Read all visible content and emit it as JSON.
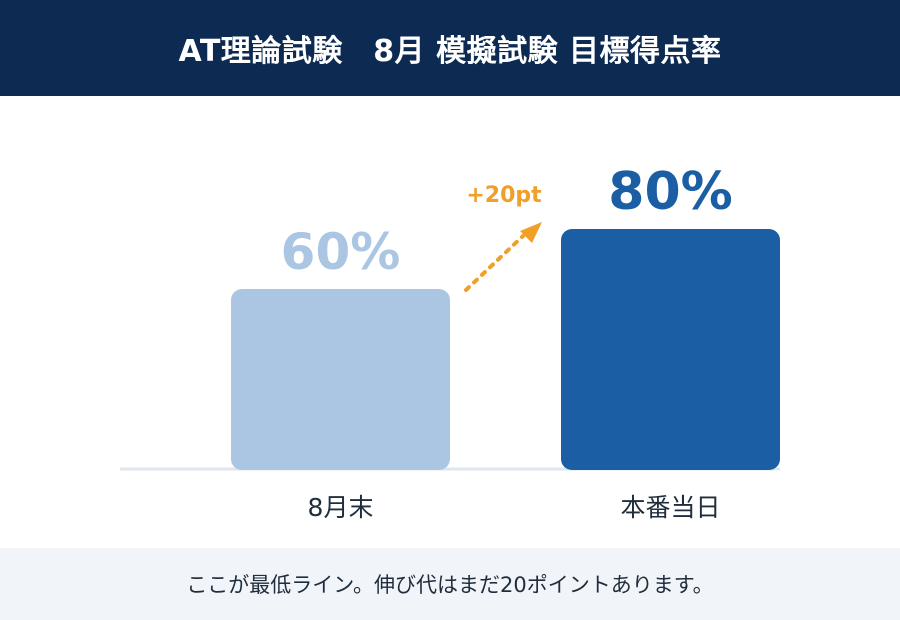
{
  "header": {
    "title": "AT理論試験　8月 模擬試験 目標得点率",
    "background": "#0c2a52",
    "text_color": "#ffffff"
  },
  "chart_data": {
    "type": "bar",
    "categories": [
      "8月末",
      "本番当日"
    ],
    "values": [
      60,
      80
    ],
    "value_labels": [
      "60%",
      "80%"
    ],
    "bar_colors": [
      "#abc6e3",
      "#1c5ea4"
    ],
    "ylim": [
      0,
      100
    ],
    "grid": false,
    "annotation": {
      "text": "+20pt",
      "color": "#f0a028",
      "style": "dotted-arrow"
    }
  },
  "footer": {
    "note": "ここが最低ライン。伸び代はまだ20ポイントあります。",
    "background": "#f1f4f8"
  }
}
